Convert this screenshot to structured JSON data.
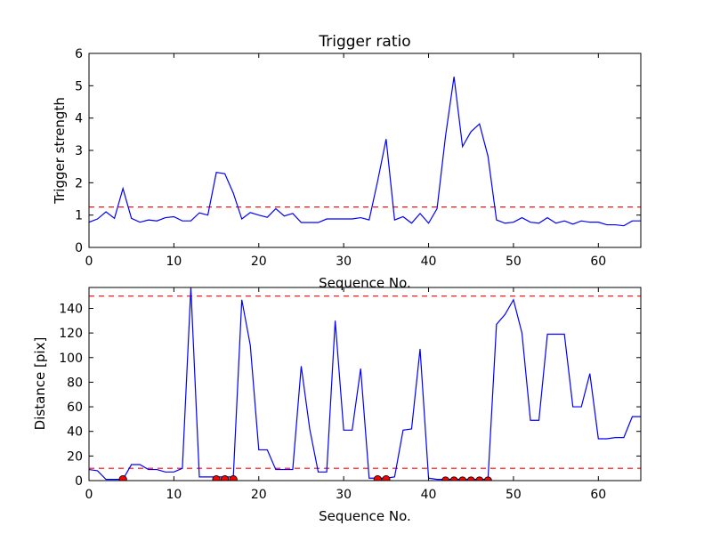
{
  "chart_data": [
    {
      "type": "line",
      "title": "Trigger ratio",
      "xlabel": "Sequence No.",
      "ylabel": "Trigger strength",
      "xlim": [
        0,
        65
      ],
      "ylim": [
        0,
        6
      ],
      "xticks": [
        0,
        10,
        20,
        30,
        40,
        50,
        60
      ],
      "yticks": [
        0,
        1,
        2,
        3,
        4,
        5,
        6
      ],
      "grid": false,
      "series": [
        {
          "color": "#0000ff",
          "x": [
            0,
            1,
            2,
            3,
            4,
            5,
            6,
            7,
            8,
            9,
            10,
            11,
            12,
            13,
            14,
            15,
            16,
            17,
            18,
            19,
            20,
            21,
            22,
            23,
            24,
            25,
            26,
            27,
            28,
            29,
            30,
            31,
            32,
            33,
            34,
            35,
            36,
            37,
            38,
            39,
            40,
            41,
            42,
            43,
            44,
            45,
            46,
            47,
            48,
            49,
            50,
            51,
            52,
            53,
            54,
            55,
            56,
            57,
            58,
            59,
            60,
            61,
            62,
            63,
            64,
            65
          ],
          "values": [
            0.78,
            0.88,
            1.1,
            0.9,
            1.82,
            0.9,
            0.78,
            0.85,
            0.82,
            0.92,
            0.95,
            0.82,
            0.82,
            1.07,
            1.0,
            2.32,
            2.28,
            1.68,
            0.88,
            1.08,
            1.0,
            0.93,
            1.2,
            0.97,
            1.05,
            0.77,
            0.77,
            0.77,
            0.88,
            0.88,
            0.88,
            0.88,
            0.92,
            0.85,
            2.05,
            3.35,
            0.85,
            0.95,
            0.75,
            1.05,
            0.75,
            1.2,
            3.45,
            5.28,
            3.12,
            3.58,
            3.82,
            2.82,
            0.85,
            0.75,
            0.78,
            0.92,
            0.78,
            0.75,
            0.92,
            0.75,
            0.82,
            0.72,
            0.82,
            0.78,
            0.78,
            0.7,
            0.7,
            0.67,
            0.82,
            0.82
          ]
        }
      ],
      "reference_lines": [
        {
          "y": 1.25,
          "color": "#ff0000",
          "style": "dashed"
        }
      ]
    },
    {
      "type": "line",
      "title": "",
      "xlabel": "Sequence No.",
      "ylabel": "Distance [pix]",
      "xlim": [
        0,
        65
      ],
      "ylim": [
        0,
        157
      ],
      "xticks": [
        0,
        10,
        20,
        30,
        40,
        50,
        60
      ],
      "yticks": [
        0,
        20,
        40,
        60,
        80,
        100,
        120,
        140
      ],
      "grid": false,
      "series": [
        {
          "color": "#0000ff",
          "x": [
            0,
            1,
            2,
            3,
            4,
            5,
            6,
            7,
            8,
            9,
            10,
            11,
            12,
            13,
            14,
            15,
            16,
            17,
            18,
            19,
            20,
            21,
            22,
            23,
            24,
            25,
            26,
            27,
            28,
            29,
            30,
            31,
            32,
            33,
            34,
            35,
            36,
            37,
            38,
            39,
            40,
            41,
            42,
            43,
            44,
            45,
            46,
            47,
            48,
            49,
            50,
            51,
            52,
            53,
            54,
            55,
            56,
            57,
            58,
            59,
            60,
            61,
            62,
            63,
            64,
            65
          ],
          "values": [
            9,
            8,
            1,
            1,
            1,
            13,
            13,
            9,
            9,
            7,
            7,
            10,
            157,
            3,
            3,
            3,
            3,
            3,
            147,
            110,
            25,
            25,
            9,
            9,
            9,
            93,
            42,
            7,
            7,
            130,
            41,
            41,
            91,
            2,
            2,
            2,
            3,
            41,
            42,
            107,
            2,
            1,
            1,
            1,
            1,
            1,
            1,
            1,
            127,
            135,
            147,
            120,
            49,
            49,
            119,
            119,
            119,
            60,
            60,
            87,
            34,
            34,
            35,
            35,
            52,
            52
          ]
        }
      ],
      "markers": {
        "color": "#ff0000",
        "x": [
          4,
          15,
          16,
          17,
          34,
          35,
          42,
          43,
          44,
          45,
          46,
          47
        ],
        "values": [
          1,
          1,
          1,
          1,
          1,
          1,
          0,
          0,
          0,
          0,
          0,
          0
        ]
      },
      "reference_lines": [
        {
          "y": 150,
          "color": "#ff0000",
          "style": "dashed"
        },
        {
          "y": 10,
          "color": "#ff0000",
          "style": "dashed"
        }
      ]
    }
  ]
}
